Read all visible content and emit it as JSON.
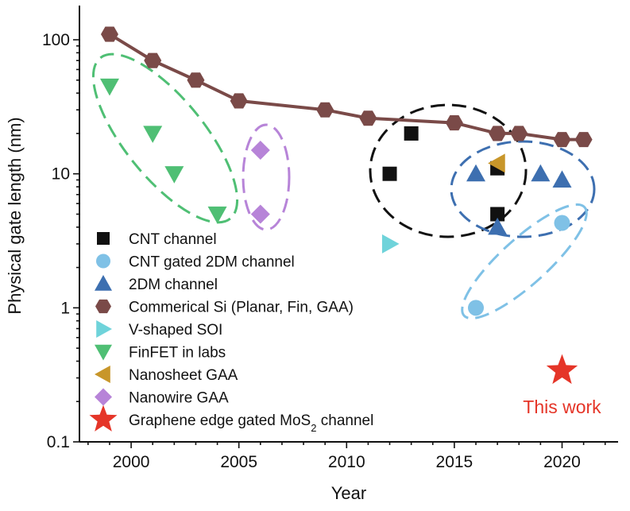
{
  "chart_data": {
    "type": "scatter",
    "x_axis": {
      "label": "Year",
      "ticks": [
        "2000",
        "2005",
        "2010",
        "2015",
        "2020"
      ],
      "tick_values": [
        2000,
        2005,
        2010,
        2015,
        2020
      ],
      "range": [
        1997.6,
        2022.6
      ]
    },
    "y_axis": {
      "label": "Physical gate length (nm)",
      "scale": "log",
      "ticks": [
        "0.1",
        "1",
        "10",
        "100"
      ],
      "tick_values": [
        0.1,
        1,
        10,
        100
      ],
      "range": [
        0.1,
        180
      ]
    },
    "legend_position": "left",
    "series": [
      {
        "name": "CNT channel",
        "marker": "square",
        "color": "#111111",
        "points": [
          [
            2012,
            10
          ],
          [
            2013,
            20
          ],
          [
            2017,
            11
          ],
          [
            2017,
            5
          ]
        ]
      },
      {
        "name": "CNT gated 2DM channel",
        "marker": "circle",
        "color": "#7fc1e6",
        "points": [
          [
            2016,
            1
          ],
          [
            2020,
            4.3
          ]
        ]
      },
      {
        "name": "2DM channel",
        "marker": "triangle-up",
        "color": "#3d6fb0",
        "points": [
          [
            2016,
            10
          ],
          [
            2017,
            4
          ],
          [
            2019,
            10
          ],
          [
            2020,
            9
          ]
        ]
      },
      {
        "name": "Commerical Si (Planar, Fin, GAA)",
        "marker": "hexagon",
        "color": "#7a4a48",
        "line": true,
        "points": [
          [
            1999,
            110
          ],
          [
            2001,
            70
          ],
          [
            2003,
            50
          ],
          [
            2005,
            35
          ],
          [
            2009,
            30
          ],
          [
            2011,
            26
          ],
          [
            2015,
            24
          ],
          [
            2017,
            20
          ],
          [
            2018,
            20
          ],
          [
            2020,
            18
          ],
          [
            2021,
            18
          ]
        ]
      },
      {
        "name": "V-shaped SOI",
        "marker": "triangle-right",
        "color": "#6fd3da",
        "points": [
          [
            2012,
            3
          ]
        ]
      },
      {
        "name": "FinFET in labs",
        "marker": "triangle-down",
        "color": "#4fbf74",
        "points": [
          [
            1999,
            45
          ],
          [
            2001,
            20
          ],
          [
            2002,
            10
          ],
          [
            2004,
            5
          ]
        ]
      },
      {
        "name": "Nanosheet GAA",
        "marker": "triangle-left",
        "color": "#c8962a",
        "points": [
          [
            2017,
            12
          ]
        ]
      },
      {
        "name": "Nanowire GAA",
        "marker": "diamond",
        "color": "#b784d8",
        "points": [
          [
            2006,
            15
          ],
          [
            2006,
            5
          ]
        ]
      },
      {
        "name": "Graphene edge gated MoS",
        "name_subscript": "2",
        "name_suffix": " channel",
        "marker": "star",
        "color": "#e53528",
        "points": [
          [
            2020,
            0.34
          ]
        ]
      }
    ],
    "annotations": [
      {
        "text": "This work",
        "color": "#e53528"
      }
    ],
    "groups": [
      {
        "color": "#4fbf74",
        "series": "FinFET in labs"
      },
      {
        "color": "#b784d8",
        "series": "Nanowire GAA"
      },
      {
        "color": "#111111",
        "series": "CNT channel"
      },
      {
        "color": "#3d6fb0",
        "series": "2DM channel"
      },
      {
        "color": "#7fc1e6",
        "series": "CNT gated 2DM channel"
      }
    ]
  }
}
